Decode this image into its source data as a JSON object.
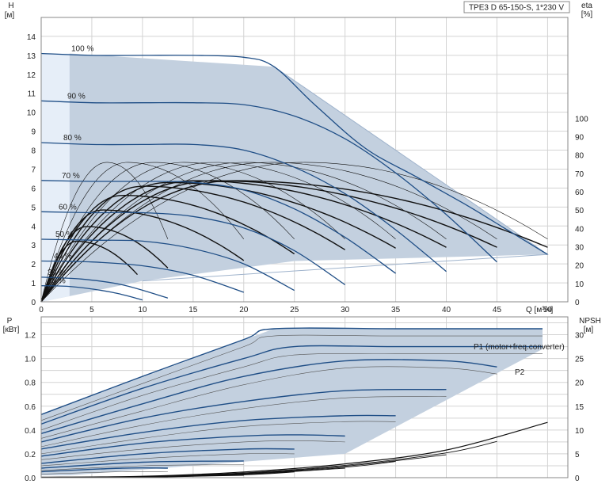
{
  "colors": {
    "envelope": "#c3d0df",
    "envelope_light": "#e6eef8",
    "hq_curve": "#1f4e86",
    "eta_curve": "#111111",
    "grid": "#d3d3d3"
  },
  "chart_data": [
    {
      "type": "line",
      "title": "TPE3 D 65-150-S, 1*230 V",
      "xlabel": "Q [м³/ч]",
      "ylabel_left": "H [м]",
      "ylabel_right": "eta [%]",
      "xlim": [
        0,
        52
      ],
      "ylim_left": [
        0,
        15
      ],
      "ylim_right": [
        0,
        155
      ],
      "x_ticks": [
        "0",
        "5",
        "10",
        "15",
        "20",
        "25",
        "30",
        "35",
        "40",
        "45",
        "50"
      ],
      "y_ticks_left": [
        "0",
        "1",
        "2",
        "3",
        "4",
        "5",
        "6",
        "7",
        "8",
        "9",
        "10",
        "11",
        "12",
        "13",
        "14"
      ],
      "y_ticks_right": [
        "0",
        "10",
        "20",
        "30",
        "40",
        "50",
        "60",
        "70",
        "80",
        "90",
        "100"
      ],
      "grid": true,
      "envelope": [
        [
          0,
          13.1
        ],
        [
          2.8,
          13.1
        ],
        [
          23,
          12.4
        ],
        [
          50,
          2.5
        ],
        [
          25,
          2.15
        ],
        [
          10,
          1.1
        ],
        [
          2.8,
          0.3
        ],
        [
          0,
          0
        ]
      ],
      "series": [
        {
          "name": "100 %",
          "x": [
            0,
            5,
            10,
            15,
            20,
            23,
            27,
            32,
            37,
            42,
            46,
            50
          ],
          "y": [
            13.1,
            13.0,
            13.0,
            13.0,
            12.9,
            12.4,
            10.4,
            8.1,
            6.6,
            5.1,
            3.8,
            2.5
          ]
        },
        {
          "name": "90 %",
          "x": [
            0,
            5,
            10,
            15,
            20,
            25,
            30,
            35,
            40,
            45
          ],
          "y": [
            10.6,
            10.5,
            10.5,
            10.5,
            10.4,
            9.8,
            8.6,
            6.8,
            4.6,
            2.1
          ]
        },
        {
          "name": "80 %",
          "x": [
            0,
            5,
            10,
            15,
            20,
            25,
            30,
            35,
            40
          ],
          "y": [
            8.4,
            8.3,
            8.3,
            8.3,
            8.0,
            7.1,
            5.7,
            3.8,
            1.6
          ]
        },
        {
          "name": "70 %",
          "x": [
            0,
            5,
            10,
            15,
            20,
            25,
            30,
            35
          ],
          "y": [
            6.4,
            6.35,
            6.35,
            6.3,
            5.9,
            4.9,
            3.4,
            1.5
          ]
        },
        {
          "name": "60 %",
          "x": [
            0,
            5,
            10,
            15,
            20,
            25,
            30
          ],
          "y": [
            4.75,
            4.7,
            4.7,
            4.5,
            3.9,
            2.7,
            0.9
          ]
        },
        {
          "name": "50 %",
          "x": [
            0,
            5,
            10,
            15,
            20,
            25
          ],
          "y": [
            3.3,
            3.25,
            3.2,
            2.8,
            2.0,
            0.6
          ]
        },
        {
          "name": "40 %",
          "x": [
            0,
            5,
            10,
            15,
            20
          ],
          "y": [
            2.15,
            2.1,
            1.9,
            1.4,
            0.5
          ]
        },
        {
          "name": "30 %",
          "x": [
            0,
            4,
            8,
            12.5
          ],
          "y": [
            1.3,
            1.2,
            0.9,
            0.2
          ]
        },
        {
          "name": "25 %",
          "x": [
            0,
            3,
            7,
            10
          ],
          "y": [
            0.85,
            0.8,
            0.5,
            0.1
          ]
        }
      ],
      "eta_curves": [
        {
          "peak_x": 3.5,
          "peak": 33,
          "end_x": 9.5
        },
        {
          "peak_x": 4.5,
          "peak": 41,
          "end_x": 12.5
        },
        {
          "peak_x": 6.0,
          "peak": 50,
          "end_x": 20
        },
        {
          "peak_x": 8.0,
          "peak": 58,
          "end_x": 25
        },
        {
          "peak_x": 10.0,
          "peak": 63,
          "end_x": 30
        },
        {
          "peak_x": 12.5,
          "peak": 65,
          "end_x": 35
        },
        {
          "peak_x": 15.0,
          "peak": 66,
          "end_x": 40
        },
        {
          "peak_x": 17.0,
          "peak": 66,
          "end_x": 45
        },
        {
          "peak_x": 19.0,
          "peak": 66,
          "end_x": 50
        },
        {
          "peak_x": 6.5,
          "peak": 76,
          "end_x": 12.5
        },
        {
          "peak_x": 8.5,
          "peak": 76,
          "end_x": 20
        },
        {
          "peak_x": 11.0,
          "peak": 76,
          "end_x": 25
        },
        {
          "peak_x": 14.0,
          "peak": 76,
          "end_x": 30
        },
        {
          "peak_x": 17.0,
          "peak": 76,
          "end_x": 35
        },
        {
          "peak_x": 20.0,
          "peak": 76,
          "end_x": 40
        },
        {
          "peak_x": 22.5,
          "peak": 76,
          "end_x": 45
        },
        {
          "peak_x": 26.0,
          "peak": 76,
          "end_x": 50
        }
      ]
    },
    {
      "type": "line",
      "ylabel_left": "P [кВт]",
      "ylabel_right": "NPSH [м]",
      "xlim": [
        0,
        52
      ],
      "ylim_left": [
        0,
        1.35
      ],
      "ylim_right": [
        0,
        33.75
      ],
      "y_ticks_left": [
        "0.0",
        "0.2",
        "0.4",
        "0.6",
        "0.8",
        "1.0",
        "1.2"
      ],
      "y_ticks_right": [
        "0",
        "5",
        "10",
        "15",
        "20",
        "25",
        "30"
      ],
      "grid": true,
      "envelope": [
        [
          0,
          0.53
        ],
        [
          23,
          1.25
        ],
        [
          49.5,
          1.25
        ],
        [
          49.5,
          1.08
        ],
        [
          30,
          0.2
        ],
        [
          2.8,
          0.02
        ],
        [
          0,
          0.02
        ]
      ],
      "legend_labels": [
        "P1 (motor+freq.converter)",
        "P2"
      ],
      "p1_curves": [
        {
          "x": [
            0,
            10,
            20,
            23,
            35,
            49.5
          ],
          "y": [
            0.53,
            0.85,
            1.16,
            1.25,
            1.25,
            1.25
          ]
        },
        {
          "x": [
            0,
            10,
            20,
            25,
            35,
            49.5
          ],
          "y": [
            0.45,
            0.75,
            1.0,
            1.1,
            1.1,
            1.1
          ]
        },
        {
          "x": [
            0,
            10,
            20,
            30,
            40,
            45
          ],
          "y": [
            0.37,
            0.62,
            0.85,
            0.98,
            0.98,
            0.93
          ]
        },
        {
          "x": [
            0,
            10,
            20,
            30,
            40
          ],
          "y": [
            0.3,
            0.5,
            0.64,
            0.73,
            0.74
          ]
        },
        {
          "x": [
            0,
            10,
            20,
            30,
            35
          ],
          "y": [
            0.24,
            0.38,
            0.48,
            0.52,
            0.52
          ]
        },
        {
          "x": [
            0,
            10,
            20,
            25,
            30
          ],
          "y": [
            0.18,
            0.29,
            0.35,
            0.36,
            0.35
          ]
        },
        {
          "x": [
            0,
            10,
            20,
            25
          ],
          "y": [
            0.12,
            0.2,
            0.24,
            0.24
          ]
        },
        {
          "x": [
            0,
            10,
            20
          ],
          "y": [
            0.08,
            0.13,
            0.14
          ]
        },
        {
          "x": [
            0,
            8,
            12.5
          ],
          "y": [
            0.05,
            0.08,
            0.08
          ]
        }
      ],
      "p2_curves": [
        {
          "x": [
            0,
            10,
            20,
            23,
            35,
            49.5
          ],
          "y": [
            0.48,
            0.79,
            1.1,
            1.19,
            1.19,
            1.19
          ]
        },
        {
          "x": [
            0,
            10,
            20,
            25,
            35,
            49.5
          ],
          "y": [
            0.4,
            0.69,
            0.93,
            1.03,
            1.04,
            1.04
          ]
        },
        {
          "x": [
            0,
            10,
            20,
            30,
            40,
            45
          ],
          "y": [
            0.33,
            0.56,
            0.78,
            0.92,
            0.92,
            0.87
          ]
        },
        {
          "x": [
            0,
            10,
            20,
            30,
            40
          ],
          "y": [
            0.26,
            0.44,
            0.58,
            0.67,
            0.68
          ]
        },
        {
          "x": [
            0,
            10,
            20,
            30,
            35
          ],
          "y": [
            0.2,
            0.33,
            0.43,
            0.47,
            0.47
          ]
        },
        {
          "x": [
            0,
            10,
            20,
            25,
            30
          ],
          "y": [
            0.15,
            0.24,
            0.3,
            0.31,
            0.3
          ]
        },
        {
          "x": [
            0,
            10,
            20,
            25
          ],
          "y": [
            0.1,
            0.16,
            0.2,
            0.2
          ]
        },
        {
          "x": [
            0,
            10,
            20
          ],
          "y": [
            0.06,
            0.1,
            0.11
          ]
        },
        {
          "x": [
            0,
            8,
            12.5
          ],
          "y": [
            0.03,
            0.05,
            0.05
          ]
        }
      ],
      "npsh_curves": [
        {
          "x": [
            0,
            10,
            20,
            30,
            40,
            50
          ],
          "y": [
            0.1,
            0.3,
            1.2,
            2.9,
            5.8,
            11.6
          ]
        },
        {
          "x": [
            0,
            10,
            20,
            30,
            40,
            45
          ],
          "y": [
            0.05,
            0.25,
            1.0,
            2.6,
            5.2,
            7.6
          ]
        },
        {
          "x": [
            0,
            10,
            20,
            30,
            40
          ],
          "y": [
            0.05,
            0.2,
            0.9,
            2.4,
            4.8
          ]
        },
        {
          "x": [
            0,
            10,
            20,
            30,
            35
          ],
          "y": [
            0.03,
            0.2,
            0.8,
            2.2,
            3.4
          ]
        },
        {
          "x": [
            0,
            10,
            20,
            30
          ],
          "y": [
            0.03,
            0.15,
            0.7,
            2.0
          ]
        },
        {
          "x": [
            0,
            10,
            20,
            25
          ],
          "y": [
            0.02,
            0.12,
            0.6,
            1.2
          ]
        },
        {
          "x": [
            0,
            10,
            20
          ],
          "y": [
            0.02,
            0.1,
            0.5
          ]
        },
        {
          "x": [
            0,
            8,
            12.5
          ],
          "y": [
            0.01,
            0.06,
            0.18
          ]
        }
      ]
    }
  ]
}
